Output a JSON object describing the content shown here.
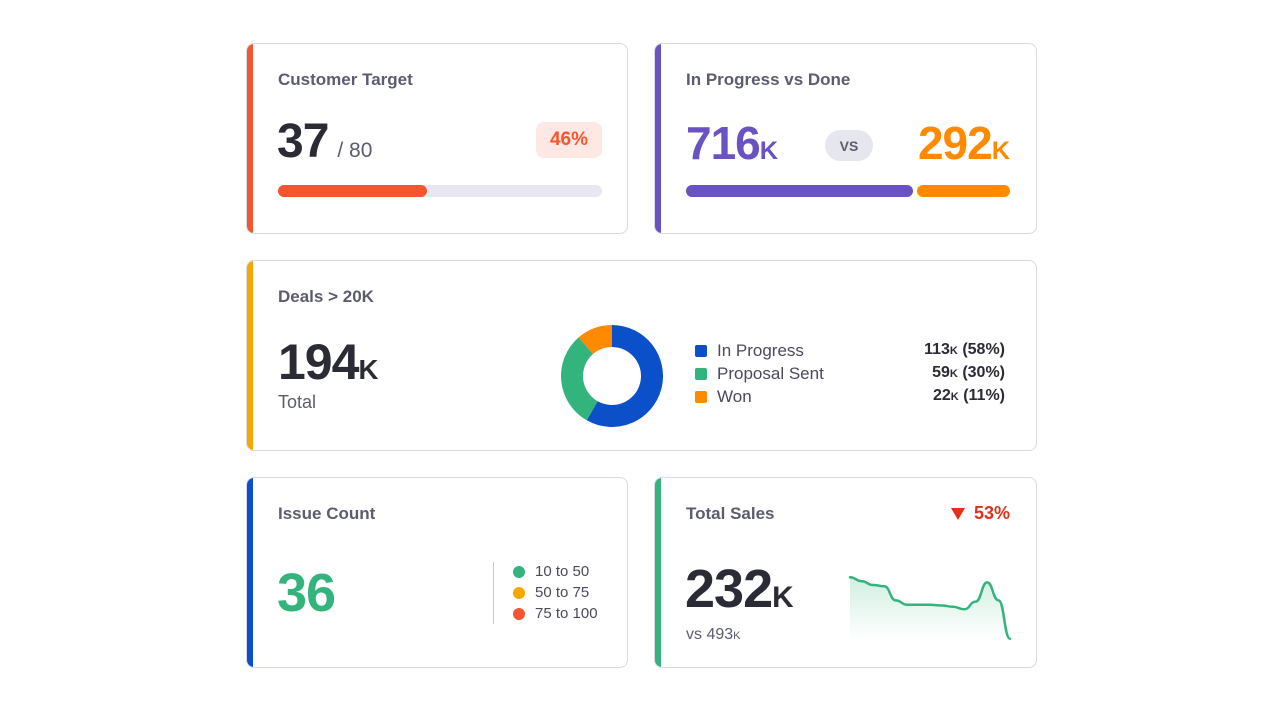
{
  "colors": {
    "red": "#f6552f",
    "purple": "#6a52c4",
    "orange": "#ff8a00",
    "gold": "#f7a800",
    "blue": "#0b50c8",
    "green": "#33b47d",
    "track": "#e8e7f1"
  },
  "customer_target": {
    "title": "Customer Target",
    "value": "37",
    "of": "/ 80",
    "percent": "46%",
    "progress": 0.46
  },
  "progress_done": {
    "title": "In Progress vs Done",
    "left_value": "716",
    "left_unit": "K",
    "vs": "VS",
    "right_value": "292",
    "right_unit": "K",
    "left_fraction": 0.71
  },
  "deals": {
    "title": "Deals > 20K",
    "total_value": "194",
    "total_unit": "K",
    "total_label": "Total",
    "legend": [
      {
        "label": "In Progress",
        "value": "113",
        "unit": "K",
        "pct": "(58%)"
      },
      {
        "label": "Proposal Sent",
        "value": "59",
        "unit": "K",
        "pct": "(30%)"
      },
      {
        "label": "Won",
        "value": "22",
        "unit": "K",
        "pct": "(11%)"
      }
    ]
  },
  "chart_data": {
    "type": "pie",
    "categories": [
      "In Progress",
      "Proposal Sent",
      "Won"
    ],
    "values": [
      113,
      59,
      22
    ],
    "colors": [
      "#0b50c8",
      "#33b47d",
      "#ff8a00"
    ]
  },
  "issue_count": {
    "title": "Issue Count",
    "value": "36",
    "legend": [
      {
        "label": "10 to 50",
        "color": "#33b47d"
      },
      {
        "label": "50 to 75",
        "color": "#f7a800"
      },
      {
        "label": "75 to 100",
        "color": "#f6552f"
      }
    ]
  },
  "total_sales": {
    "title": "Total Sales",
    "change_icon": "triangle-down-icon",
    "change": "53%",
    "value": "232",
    "unit": "K",
    "compare_prefix": "vs 493",
    "compare_unit": "K",
    "sparkline": [
      0.98,
      0.92,
      0.86,
      0.84,
      0.62,
      0.55,
      0.55,
      0.55,
      0.54,
      0.52,
      0.48,
      0.6,
      0.9,
      0.62,
      0.02
    ]
  }
}
